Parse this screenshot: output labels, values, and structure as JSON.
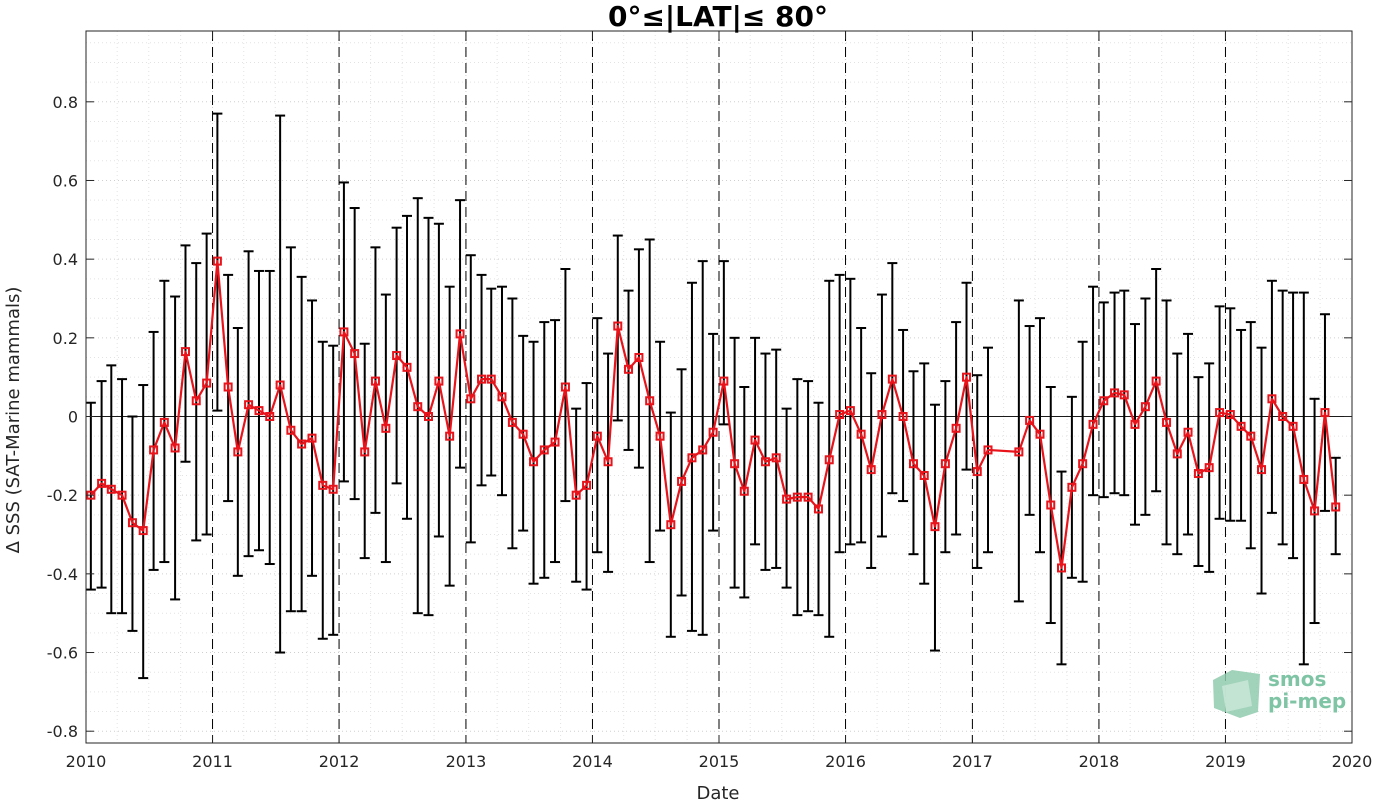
{
  "chart_data": {
    "type": "line",
    "title": "0°≤|LAT|≤ 80°",
    "xlabel": "Date",
    "ylabel": "Δ SSS (SAT-Marine mammals)",
    "xlim": [
      "2010-01-01",
      "2020-01-01"
    ],
    "ylim": [
      -0.83,
      0.98
    ],
    "x_ticks": [
      "2010",
      "2011",
      "2012",
      "2013",
      "2014",
      "2015",
      "2016",
      "2017",
      "2018",
      "2019",
      "2020"
    ],
    "y_ticks": [
      -0.8,
      -0.6,
      -0.4,
      -0.2,
      0,
      0.2,
      0.4,
      0.6,
      0.8
    ],
    "y_tick_labels": [
      "-0.8",
      "-0.6",
      "-0.4",
      "-0.2",
      "0",
      "0.2",
      "0.4",
      "0.6",
      "0.8"
    ],
    "grid": "major and minor dotted",
    "year_markers": "dashed vertical lines at each year start",
    "colors": {
      "series": "#e8141c",
      "errorbars": "#000000",
      "grid": "#d9d9d9"
    },
    "series": [
      {
        "marker": "square",
        "x": [
          "2010-01",
          "2010-02",
          "2010-03",
          "2010-04",
          "2010-05",
          "2010-06",
          "2010-07",
          "2010-08",
          "2010-09",
          "2010-10",
          "2010-11",
          "2010-12",
          "2011-01",
          "2011-02",
          "2011-03",
          "2011-04",
          "2011-05",
          "2011-06",
          "2011-07",
          "2011-08",
          "2011-09",
          "2011-10",
          "2011-11",
          "2011-12",
          "2012-01",
          "2012-02",
          "2012-03",
          "2012-04",
          "2012-05",
          "2012-06",
          "2012-07",
          "2012-08",
          "2012-09",
          "2012-10",
          "2012-11",
          "2012-12",
          "2013-01",
          "2013-02",
          "2013-03",
          "2013-04",
          "2013-05",
          "2013-06",
          "2013-07",
          "2013-08",
          "2013-09",
          "2013-10",
          "2013-11",
          "2013-12",
          "2014-01",
          "2014-02",
          "2014-03",
          "2014-04",
          "2014-05",
          "2014-06",
          "2014-07",
          "2014-08",
          "2014-09",
          "2014-10",
          "2014-11",
          "2014-12",
          "2015-01",
          "2015-02",
          "2015-03",
          "2015-04",
          "2015-05",
          "2015-06",
          "2015-07",
          "2015-08",
          "2015-09",
          "2015-10",
          "2015-11",
          "2015-12",
          "2016-01",
          "2016-02",
          "2016-03",
          "2016-04",
          "2016-05",
          "2016-06",
          "2016-07",
          "2016-08",
          "2016-09",
          "2016-10",
          "2016-11",
          "2016-12",
          "2017-01",
          "2017-02",
          "2017-05",
          "2017-06",
          "2017-07",
          "2017-08",
          "2017-09",
          "2017-10",
          "2017-11",
          "2017-12",
          "2018-01",
          "2018-02",
          "2018-03",
          "2018-04",
          "2018-05",
          "2018-06",
          "2018-07",
          "2018-08",
          "2018-09",
          "2018-10",
          "2018-11",
          "2018-12",
          "2019-01",
          "2019-02",
          "2019-03",
          "2019-04",
          "2019-05",
          "2019-06",
          "2019-07",
          "2019-08",
          "2019-09",
          "2019-10",
          "2019-11"
        ],
        "y": [
          -0.2,
          -0.17,
          -0.185,
          -0.2,
          -0.27,
          -0.29,
          -0.085,
          -0.015,
          -0.08,
          0.165,
          0.04,
          0.085,
          0.395,
          0.075,
          -0.09,
          0.03,
          0.015,
          0.0,
          0.08,
          -0.035,
          -0.07,
          -0.055,
          -0.175,
          -0.185,
          0.215,
          0.16,
          -0.09,
          0.09,
          -0.03,
          0.155,
          0.125,
          0.025,
          0.0,
          0.09,
          -0.05,
          0.21,
          0.045,
          0.095,
          0.095,
          0.05,
          -0.015,
          -0.045,
          -0.115,
          -0.085,
          -0.065,
          0.075,
          -0.2,
          -0.175,
          -0.05,
          -0.115,
          0.23,
          0.12,
          0.15,
          0.04,
          -0.05,
          -0.275,
          -0.165,
          -0.105,
          -0.085,
          -0.04,
          0.09,
          -0.12,
          -0.19,
          -0.06,
          -0.115,
          -0.105,
          -0.21,
          -0.205,
          -0.205,
          -0.235,
          -0.11,
          0.005,
          0.015,
          -0.045,
          -0.135,
          0.005,
          0.095,
          0.0,
          -0.12,
          -0.15,
          -0.28,
          -0.12,
          -0.03,
          0.1,
          -0.14,
          -0.085,
          -0.09,
          -0.01,
          -0.045,
          -0.225,
          -0.385,
          -0.18,
          -0.12,
          -0.02,
          0.04,
          0.06,
          0.055,
          -0.02,
          0.025,
          0.09,
          -0.015,
          -0.095,
          -0.04,
          -0.145,
          -0.13,
          0.01,
          0.005,
          -0.025,
          -0.05,
          -0.135,
          0.045,
          0.0,
          -0.025,
          -0.16,
          -0.24,
          0.01,
          -0.23
        ],
        "error_low": [
          -0.44,
          -0.435,
          -0.5,
          -0.5,
          -0.545,
          -0.665,
          -0.39,
          -0.37,
          -0.465,
          -0.115,
          -0.315,
          -0.3,
          0.015,
          -0.215,
          -0.405,
          -0.355,
          -0.34,
          -0.375,
          -0.6,
          -0.495,
          -0.495,
          -0.405,
          -0.565,
          -0.555,
          -0.165,
          -0.21,
          -0.36,
          -0.245,
          -0.37,
          -0.17,
          -0.26,
          -0.5,
          -0.505,
          -0.305,
          -0.43,
          -0.13,
          -0.32,
          -0.175,
          -0.15,
          -0.2,
          -0.335,
          -0.29,
          -0.425,
          -0.41,
          -0.37,
          -0.215,
          -0.42,
          -0.44,
          -0.345,
          -0.395,
          -0.01,
          -0.085,
          -0.13,
          -0.37,
          -0.29,
          -0.56,
          -0.455,
          -0.545,
          -0.555,
          -0.29,
          -0.02,
          -0.435,
          -0.46,
          -0.325,
          -0.39,
          -0.385,
          -0.435,
          -0.505,
          -0.495,
          -0.505,
          -0.56,
          -0.345,
          -0.325,
          -0.32,
          -0.385,
          -0.305,
          -0.195,
          -0.215,
          -0.35,
          -0.425,
          -0.595,
          -0.345,
          -0.3,
          -0.135,
          -0.385,
          -0.345,
          -0.47,
          -0.25,
          -0.345,
          -0.525,
          -0.63,
          -0.41,
          -0.42,
          -0.2,
          -0.205,
          -0.195,
          -0.2,
          -0.275,
          -0.25,
          -0.19,
          -0.325,
          -0.35,
          -0.3,
          -0.38,
          -0.395,
          -0.26,
          -0.265,
          -0.265,
          -0.335,
          -0.45,
          -0.245,
          -0.325,
          -0.36,
          -0.63,
          -0.525,
          -0.24,
          -0.35
        ],
        "error_high": [
          0.035,
          0.09,
          0.13,
          0.095,
          0.0,
          0.08,
          0.215,
          0.345,
          0.305,
          0.435,
          0.39,
          0.465,
          0.77,
          0.36,
          0.225,
          0.42,
          0.37,
          0.37,
          0.765,
          0.43,
          0.355,
          0.295,
          0.19,
          0.18,
          0.595,
          0.53,
          0.185,
          0.43,
          0.31,
          0.48,
          0.51,
          0.555,
          0.505,
          0.49,
          0.33,
          0.55,
          0.41,
          0.36,
          0.325,
          0.33,
          0.3,
          0.205,
          0.19,
          0.24,
          0.245,
          0.375,
          0.02,
          0.085,
          0.25,
          0.16,
          0.46,
          0.32,
          0.425,
          0.45,
          0.19,
          0.01,
          0.12,
          0.34,
          0.395,
          0.21,
          0.395,
          0.2,
          0.075,
          0.2,
          0.16,
          0.17,
          0.02,
          0.095,
          0.09,
          0.035,
          0.345,
          0.36,
          0.35,
          0.225,
          0.11,
          0.31,
          0.39,
          0.22,
          0.115,
          0.135,
          0.03,
          0.09,
          0.24,
          0.34,
          0.105,
          0.175,
          0.295,
          0.23,
          0.25,
          0.075,
          -0.14,
          0.05,
          0.19,
          0.33,
          0.29,
          0.315,
          0.32,
          0.235,
          0.3,
          0.375,
          0.295,
          0.16,
          0.21,
          0.1,
          0.135,
          0.28,
          0.275,
          0.22,
          0.24,
          0.175,
          0.345,
          0.32,
          0.315,
          0.315,
          0.045,
          0.26,
          -0.105
        ]
      }
    ]
  },
  "logo": {
    "line1": "smos",
    "line2": "pi-mep",
    "colors": [
      "#5fb38c",
      "#a8d8c0"
    ]
  }
}
